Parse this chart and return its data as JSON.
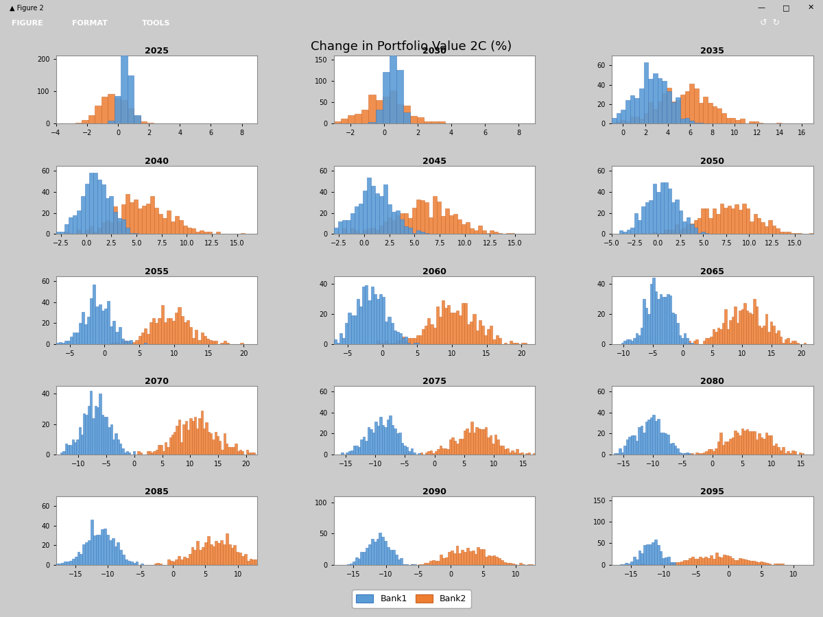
{
  "title": "Change in Portfolio Value 2C (%)",
  "bank1_color": "#5B9BD5",
  "bank2_color": "#ED7D31",
  "background_color": "#CBCBCB",
  "plot_background": "#FFFFFF",
  "legend_labels": [
    "Bank1",
    "Bank2"
  ],
  "toolbar_color": "#1B3F76",
  "titlebar_color": "#F0F0F0",
  "years": [
    "2025",
    "2030",
    "2035",
    "2040",
    "2045",
    "2050",
    "2055",
    "2060",
    "2065",
    "2070",
    "2075",
    "2080",
    "2085",
    "2090",
    "2095"
  ],
  "subplot_params": {
    "2025": {
      "b1_mu": 0.5,
      "b1_sig": 0.35,
      "b2_mu": -0.3,
      "b2_sig": 0.9,
      "xlim": [
        -4,
        9
      ],
      "ylim": [
        0,
        210
      ],
      "yticks": [
        0,
        100,
        200
      ]
    },
    "2030": {
      "b1_mu": 0.5,
      "b1_sig": 0.4,
      "b2_mu": 0.2,
      "b2_sig": 1.3,
      "xlim": [
        -3,
        9
      ],
      "ylim": [
        0,
        160
      ],
      "yticks": [
        0,
        50,
        100,
        150
      ]
    },
    "2035": {
      "b1_mu": 2.5,
      "b1_sig": 1.5,
      "b2_mu": 5.5,
      "b2_sig": 2.5,
      "xlim": [
        -1,
        17
      ],
      "ylim": [
        0,
        70
      ],
      "yticks": [
        0,
        20,
        40,
        60
      ]
    },
    "2040": {
      "b1_mu": 1.0,
      "b1_sig": 1.5,
      "b2_mu": 5.5,
      "b2_sig": 2.8,
      "xlim": [
        -3,
        17
      ],
      "ylim": [
        0,
        65
      ],
      "yticks": [
        0,
        20,
        40,
        60
      ]
    },
    "2045": {
      "b1_mu": 1.0,
      "b1_sig": 1.8,
      "b2_mu": 6.0,
      "b2_sig": 3.0,
      "xlim": [
        -3,
        17
      ],
      "ylim": [
        0,
        65
      ],
      "yticks": [
        0,
        20,
        40,
        60
      ]
    },
    "2050": {
      "b1_mu": 0.5,
      "b1_sig": 1.8,
      "b2_mu": 7.5,
      "b2_sig": 3.0,
      "xlim": [
        -5,
        17
      ],
      "ylim": [
        0,
        65
      ],
      "yticks": [
        0,
        20,
        40,
        60
      ]
    },
    "2055": {
      "b1_mu": -1.0,
      "b1_sig": 2.0,
      "b2_mu": 9.5,
      "b2_sig": 3.0,
      "xlim": [
        -7,
        22
      ],
      "ylim": [
        0,
        65
      ],
      "yticks": [
        0,
        20,
        40,
        60
      ]
    },
    "2060": {
      "b1_mu": -1.5,
      "b1_sig": 2.2,
      "b2_mu": 10.0,
      "b2_sig": 3.5,
      "xlim": [
        -7,
        22
      ],
      "ylim": [
        0,
        45
      ],
      "yticks": [
        0,
        20,
        40
      ]
    },
    "2065": {
      "b1_mu": -4.0,
      "b1_sig": 2.2,
      "b2_mu": 10.5,
      "b2_sig": 3.5,
      "xlim": [
        -12,
        22
      ],
      "ylim": [
        0,
        45
      ],
      "yticks": [
        0,
        20,
        40
      ]
    },
    "2070": {
      "b1_mu": -7.0,
      "b1_sig": 2.5,
      "b2_mu": 11.0,
      "b2_sig": 3.5,
      "xlim": [
        -14,
        22
      ],
      "ylim": [
        0,
        45
      ],
      "yticks": [
        0,
        20,
        40
      ]
    },
    "2075": {
      "b1_mu": -9.0,
      "b1_sig": 2.5,
      "b2_mu": 7.0,
      "b2_sig": 3.5,
      "xlim": [
        -17,
        17
      ],
      "ylim": [
        0,
        65
      ],
      "yticks": [
        0,
        20,
        40,
        60
      ]
    },
    "2080": {
      "b1_mu": -10.5,
      "b1_sig": 2.5,
      "b2_mu": 6.0,
      "b2_sig": 3.5,
      "xlim": [
        -17,
        17
      ],
      "ylim": [
        0,
        65
      ],
      "yticks": [
        0,
        20,
        40,
        60
      ]
    },
    "2085": {
      "b1_mu": -11.0,
      "b1_sig": 2.2,
      "b2_mu": 6.5,
      "b2_sig": 3.2,
      "xlim": [
        -18,
        13
      ],
      "ylim": [
        0,
        70
      ],
      "yticks": [
        0,
        20,
        40,
        60
      ]
    },
    "2090": {
      "b1_mu": -11.0,
      "b1_sig": 1.8,
      "b2_mu": 2.5,
      "b2_sig": 3.5,
      "xlim": [
        -18,
        13
      ],
      "ylim": [
        0,
        110
      ],
      "yticks": [
        0,
        50,
        100
      ]
    },
    "2095": {
      "b1_mu": -12.0,
      "b1_sig": 1.5,
      "b2_mu": -1.5,
      "b2_sig": 4.0,
      "xlim": [
        -18,
        13
      ],
      "ylim": [
        0,
        160
      ],
      "yticks": [
        0,
        50,
        100,
        150
      ]
    }
  },
  "n_samples": 500,
  "seed": 7
}
